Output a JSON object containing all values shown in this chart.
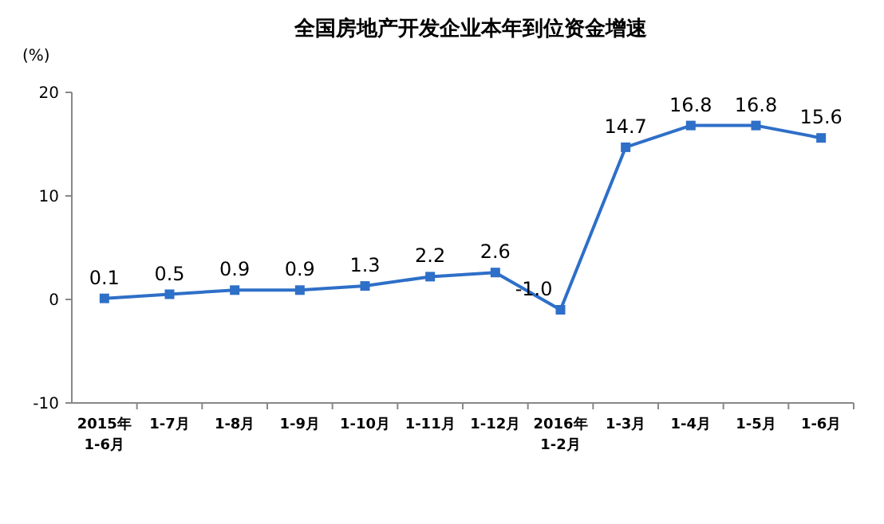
{
  "chart_data": {
    "type": "line",
    "title": "全国房地产开发企业本年到位资金增速",
    "ylabel": "(%)",
    "categories": [
      "2015年\n1-6月",
      "1-7月",
      "1-8月",
      "1-9月",
      "1-10月",
      "1-11月",
      "1-12月",
      "2016年\n1-2月",
      "1-3月",
      "1-4月",
      "1-5月",
      "1-6月"
    ],
    "series": [
      {
        "color": "#2e6fc8",
        "values": [
          0.1,
          0.5,
          0.9,
          0.9,
          1.3,
          2.2,
          2.6,
          -1.0,
          14.7,
          16.8,
          16.8,
          15.6
        ],
        "value_labels": [
          "0.1",
          "0.5",
          "0.9",
          "0.9",
          "1.3",
          "2.2",
          "2.6",
          "-1.0",
          "14.7",
          "16.8",
          "16.8",
          "15.6"
        ]
      }
    ],
    "ylim": [
      -10,
      20
    ],
    "yticks": [
      -10,
      0,
      10,
      20
    ],
    "marker": "square",
    "line_style": "solid",
    "grid": false
  }
}
